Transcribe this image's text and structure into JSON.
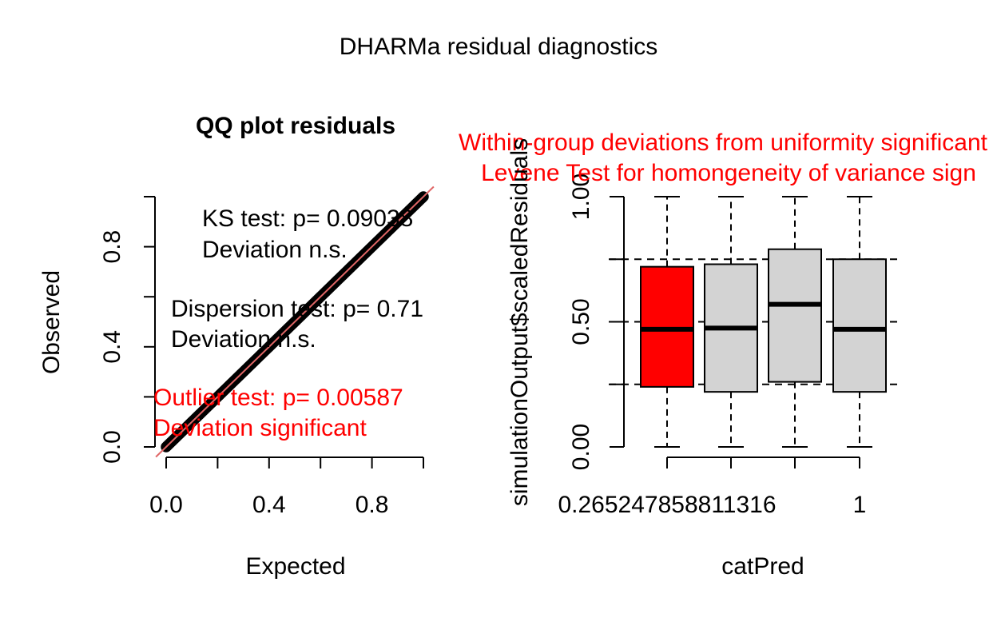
{
  "title": "DHARMa residual diagnostics",
  "colors": {
    "significant": "#ff0000",
    "box_fill": "#d3d3d3",
    "reference_line": "#e06666"
  },
  "chart_data": [
    {
      "type": "scatter",
      "title": "QQ plot residuals",
      "xlabel": "Expected",
      "ylabel": "Observed",
      "xlim": [
        0,
        1
      ],
      "ylim": [
        0,
        1
      ],
      "x_ticks": [
        0.0,
        0.2,
        0.4,
        0.6,
        0.8,
        1.0
      ],
      "x_tick_labels": [
        "0.0",
        "0.4",
        "0.8"
      ],
      "y_ticks": [
        0.0,
        0.2,
        0.4,
        0.6,
        0.8,
        1.0
      ],
      "y_tick_labels": [
        "0.0",
        "0.4",
        "0.8"
      ],
      "x": [
        0.0,
        0.05,
        0.1,
        0.15,
        0.2,
        0.25,
        0.3,
        0.35,
        0.4,
        0.45,
        0.5,
        0.55,
        0.6,
        0.65,
        0.7,
        0.75,
        0.8,
        0.85,
        0.9,
        0.95,
        1.0
      ],
      "y": [
        0.0,
        0.05,
        0.1,
        0.15,
        0.2,
        0.25,
        0.3,
        0.35,
        0.4,
        0.45,
        0.5,
        0.55,
        0.6,
        0.65,
        0.7,
        0.75,
        0.8,
        0.85,
        0.9,
        0.95,
        1.0
      ],
      "annotations": {
        "ks_line1": "KS test: p= 0.09038",
        "ks_line2": "Deviation  n.s.",
        "disp_line1": "Dispersion test: p= 0.71",
        "disp_line2": "Deviation  n.s.",
        "outlier_line1": "Outlier test: p= 0.00587",
        "outlier_line2": "Deviation  significant"
      }
    },
    {
      "type": "box",
      "title_line1": "Within-group deviations from uniformity significant",
      "title_line2": "Levene Test for homongeneity of variance sign",
      "xlabel": "catPred",
      "ylabel": "simulationOutput$scaledResiduals",
      "ylim": [
        0,
        1
      ],
      "y_ticks": [
        0.0,
        0.25,
        0.5,
        0.75,
        1.0
      ],
      "y_tick_labels": [
        "0.00",
        "0.50",
        "1.00"
      ],
      "reference_lines": [
        0.25,
        0.5,
        0.75
      ],
      "categories": [
        "0.265247858811316",
        "",
        "",
        "1"
      ],
      "boxes": [
        {
          "min": 0.0,
          "q1": 0.24,
          "median": 0.47,
          "q3": 0.72,
          "max": 1.0,
          "significant": true
        },
        {
          "min": 0.0,
          "q1": 0.22,
          "median": 0.475,
          "q3": 0.73,
          "max": 1.0,
          "significant": false
        },
        {
          "min": 0.0,
          "q1": 0.26,
          "median": 0.57,
          "q3": 0.79,
          "max": 1.0,
          "significant": false
        },
        {
          "min": 0.0,
          "q1": 0.22,
          "median": 0.47,
          "q3": 0.75,
          "max": 1.0,
          "significant": false
        }
      ]
    }
  ]
}
